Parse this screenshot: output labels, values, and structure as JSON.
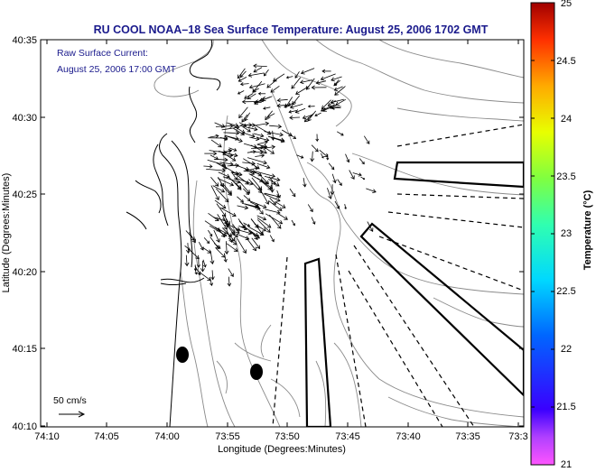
{
  "title": "RU COOL  NOAA–18  Sea Surface Temperature:  August 25, 2006 1702 GMT",
  "current_label_line1": "Raw Surface Current:",
  "current_label_line2": "August 25, 2006 17:00 GMT",
  "scale_label": "50 cm/s",
  "xlabel": "Longitude (Degrees:Minutes)",
  "ylabel": "Latitude (Degrees:Minutes)",
  "x_ticks": [
    "74:10",
    "74:05",
    "74:00",
    "73:55",
    "73:50",
    "73:45",
    "73:40",
    "73:35",
    "73:3"
  ],
  "y_ticks": [
    "40:35",
    "40:30",
    "40:25",
    "40:20",
    "40:15",
    "40:10"
  ],
  "colorbar": {
    "label": "Temperature (°C)",
    "ticks": [
      "25",
      "24.5",
      "24",
      "23.5",
      "23",
      "22.5",
      "22",
      "21.5",
      "21"
    ],
    "min": 21,
    "max": 25
  },
  "colors": {
    "title": "#1a1a8c",
    "annotation": "#1a1a8c"
  }
}
